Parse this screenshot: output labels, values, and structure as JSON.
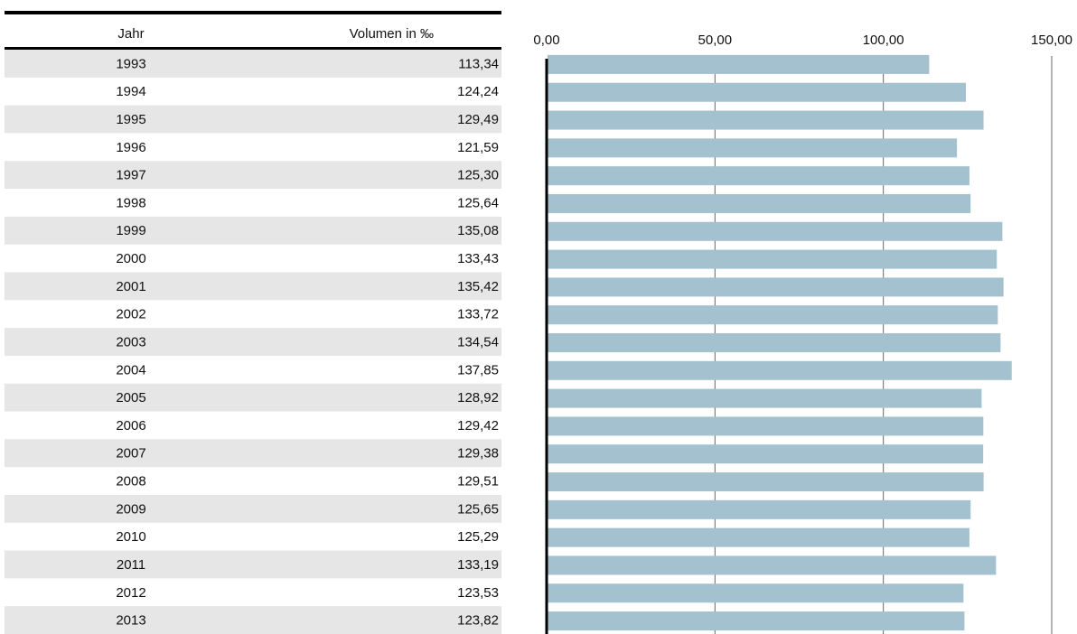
{
  "chart_data": {
    "type": "bar",
    "orientation": "horizontal",
    "headers": [
      "Jahr",
      "Volumen in ‰"
    ],
    "categories": [
      "1993",
      "1994",
      "1995",
      "1996",
      "1997",
      "1998",
      "1999",
      "2000",
      "2001",
      "2002",
      "2003",
      "2004",
      "2005",
      "2006",
      "2007",
      "2008",
      "2009",
      "2010",
      "2011",
      "2012",
      "2013"
    ],
    "values": [
      113.34,
      124.24,
      129.49,
      121.59,
      125.3,
      125.64,
      135.08,
      133.43,
      135.42,
      133.72,
      134.54,
      137.85,
      128.92,
      129.42,
      129.38,
      129.51,
      125.65,
      125.29,
      133.19,
      123.53,
      123.82
    ],
    "value_labels": [
      "113,34",
      "124,24",
      "129,49",
      "121,59",
      "125,30",
      "125,64",
      "135,08",
      "133,43",
      "135,42",
      "133,72",
      "134,54",
      "137,85",
      "128,92",
      "129,42",
      "129,38",
      "129,51",
      "125,65",
      "125,29",
      "133,19",
      "123,53",
      "123,82"
    ],
    "color": "#a3c1ce",
    "xlim": [
      0,
      150
    ],
    "xticks": [
      {
        "value": 0,
        "label": "0,00"
      },
      {
        "value": 50,
        "label": "50,00"
      },
      {
        "value": 100,
        "label": "100,00"
      },
      {
        "value": 150,
        "label": "150,00"
      }
    ],
    "grid": true
  }
}
